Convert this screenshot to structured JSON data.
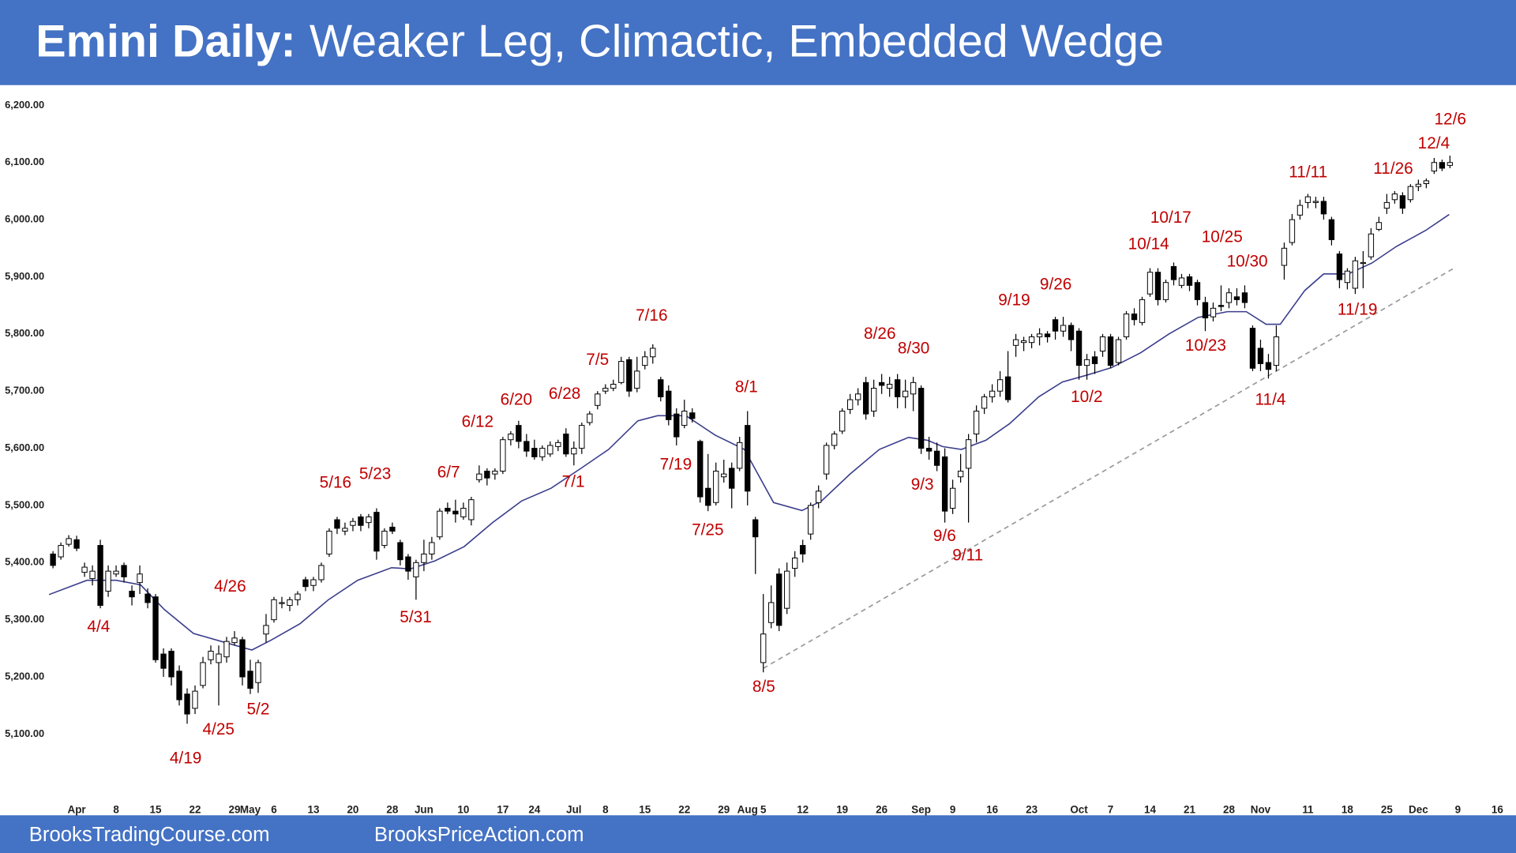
{
  "chart_data": {
    "type": "candlestick",
    "title_lead": "Emini Daily:",
    "title": "Weaker Leg, Climactic, Embedded Wedge",
    "ylim": [
      4990,
      6230
    ],
    "yticks": [
      {
        "value": 5100,
        "label": "5,100.00"
      },
      {
        "value": 5200,
        "label": "5,200.00"
      },
      {
        "value": 5300,
        "label": "5,300.00"
      },
      {
        "value": 5400,
        "label": "5,400.00"
      },
      {
        "value": 5500,
        "label": "5,500.00"
      },
      {
        "value": 5600,
        "label": "5,600.00"
      },
      {
        "value": 5700,
        "label": "5,700.00"
      },
      {
        "value": 5800,
        "label": "5,800.00"
      },
      {
        "value": 5900,
        "label": "5,900.00"
      },
      {
        "value": 6000,
        "label": "6,000.00"
      },
      {
        "value": 6100,
        "label": "6,100.00"
      },
      {
        "value": 6200,
        "label": "6,200.00"
      }
    ],
    "xlim": [
      -1.2,
      185
    ],
    "xticks": [
      {
        "value": 3,
        "label": "Apr"
      },
      {
        "value": 8,
        "label": "8"
      },
      {
        "value": 13,
        "label": "15"
      },
      {
        "value": 18,
        "label": "22"
      },
      {
        "value": 23,
        "label": "29"
      },
      {
        "value": 25,
        "label": "May"
      },
      {
        "value": 28,
        "label": "6"
      },
      {
        "value": 33,
        "label": "13"
      },
      {
        "value": 38,
        "label": "20"
      },
      {
        "value": 43,
        "label": "28"
      },
      {
        "value": 47,
        "label": "Jun"
      },
      {
        "value": 52,
        "label": "10"
      },
      {
        "value": 57,
        "label": "17"
      },
      {
        "value": 61,
        "label": "24"
      },
      {
        "value": 66,
        "label": "Jul"
      },
      {
        "value": 70,
        "label": "8"
      },
      {
        "value": 75,
        "label": "15"
      },
      {
        "value": 80,
        "label": "22"
      },
      {
        "value": 85,
        "label": "29"
      },
      {
        "value": 88,
        "label": "Aug"
      },
      {
        "value": 90,
        "label": "5"
      },
      {
        "value": 95,
        "label": "12"
      },
      {
        "value": 100,
        "label": "19"
      },
      {
        "value": 105,
        "label": "26"
      },
      {
        "value": 110,
        "label": "Sep"
      },
      {
        "value": 114,
        "label": "9"
      },
      {
        "value": 119,
        "label": "16"
      },
      {
        "value": 124,
        "label": "23"
      },
      {
        "value": 130,
        "label": "Oct"
      },
      {
        "value": 134,
        "label": "7"
      },
      {
        "value": 139,
        "label": "14"
      },
      {
        "value": 144,
        "label": "21"
      },
      {
        "value": 149,
        "label": "28"
      },
      {
        "value": 153,
        "label": "Nov"
      },
      {
        "value": 159,
        "label": "11"
      },
      {
        "value": 164,
        "label": "18"
      },
      {
        "value": 169,
        "label": "25"
      },
      {
        "value": 173,
        "label": "Dec"
      },
      {
        "value": 178,
        "label": "9"
      },
      {
        "value": 183,
        "label": "16"
      }
    ],
    "grid": false,
    "up_color": "#ffffff",
    "down_color": "#000000",
    "candles": {
      "open": [
        5415,
        5410,
        5432,
        5440,
        5383,
        5372,
        5430,
        5350,
        5380,
        5395,
        5350,
        5365,
        5345,
        5340,
        5240,
        5245,
        5210,
        5170,
        5145,
        5185,
        5230,
        5225,
        5235,
        5260,
        5265,
        5210,
        5190,
        5275,
        5300,
        5330,
        5325,
        5335,
        5370,
        5360,
        5370,
        5415,
        5475,
        5455,
        5465,
        5480,
        5470,
        5488,
        5430,
        5462,
        5435,
        5410,
        5375,
        5400,
        5415,
        5445,
        5495,
        5490,
        5480,
        5475,
        5545,
        5560,
        5555,
        5560,
        5615,
        5640,
        5612,
        5600,
        5585,
        5590,
        5603,
        5625,
        5590,
        5600,
        5645,
        5675,
        5700,
        5705,
        5715,
        5755,
        5705,
        5745,
        5760,
        5720,
        5700,
        5660,
        5640,
        5662,
        5612,
        5530,
        5505,
        5550,
        5565,
        5565,
        5640,
        5475,
        5225,
        5295,
        5380,
        5320,
        5390,
        5430,
        5450,
        5505,
        5555,
        5605,
        5630,
        5668,
        5685,
        5715,
        5665,
        5715,
        5705,
        5720,
        5690,
        5695,
        5705,
        5600,
        5595,
        5585,
        5495,
        5550,
        5565,
        5625,
        5670,
        5690,
        5700,
        5725,
        5780,
        5785,
        5785,
        5795,
        5800,
        5825,
        5805,
        5815,
        5805,
        5745,
        5760,
        5770,
        5795,
        5750,
        5795,
        5835,
        5820,
        5870,
        5908,
        5860,
        5918,
        5885,
        5900,
        5890,
        5855,
        5830,
        5850,
        5855,
        5865,
        5872,
        5810,
        5775,
        5750,
        5745,
        5920,
        5960,
        6008,
        6030,
        6030,
        6032,
        6000,
        5940,
        5890,
        5880,
        5925,
        5935,
        5983,
        6020,
        6035,
        6042,
        6035,
        6058,
        6063,
        6085,
        6100,
        6095
      ],
      "high": [
        5420,
        5435,
        5448,
        5447,
        5400,
        5395,
        5440,
        5395,
        5395,
        5400,
        5360,
        5395,
        5355,
        5345,
        5250,
        5250,
        5220,
        5180,
        5185,
        5235,
        5255,
        5255,
        5270,
        5280,
        5270,
        5230,
        5230,
        5310,
        5340,
        5340,
        5340,
        5350,
        5375,
        5375,
        5400,
        5460,
        5480,
        5470,
        5478,
        5485,
        5485,
        5495,
        5460,
        5470,
        5440,
        5415,
        5405,
        5440,
        5445,
        5495,
        5505,
        5510,
        5505,
        5515,
        5570,
        5565,
        5565,
        5620,
        5630,
        5648,
        5625,
        5615,
        5605,
        5612,
        5615,
        5635,
        5612,
        5645,
        5665,
        5700,
        5712,
        5720,
        5760,
        5760,
        5760,
        5770,
        5782,
        5725,
        5710,
        5670,
        5685,
        5670,
        5615,
        5590,
        5575,
        5580,
        5575,
        5620,
        5665,
        5480,
        5345,
        5360,
        5390,
        5400,
        5420,
        5440,
        5505,
        5535,
        5610,
        5630,
        5670,
        5695,
        5705,
        5725,
        5720,
        5730,
        5725,
        5730,
        5720,
        5725,
        5710,
        5620,
        5610,
        5600,
        5545,
        5590,
        5625,
        5675,
        5695,
        5712,
        5735,
        5770,
        5800,
        5795,
        5800,
        5810,
        5805,
        5830,
        5830,
        5820,
        5810,
        5765,
        5770,
        5800,
        5800,
        5795,
        5840,
        5845,
        5865,
        5915,
        5915,
        5895,
        5925,
        5905,
        5905,
        5895,
        5865,
        5855,
        5885,
        5880,
        5880,
        5885,
        5815,
        5790,
        5765,
        5815,
        5960,
        6010,
        6035,
        6045,
        6040,
        6040,
        6005,
        5945,
        5915,
        5935,
        5945,
        5985,
        6005,
        6045,
        6050,
        6048,
        6062,
        6070,
        6072,
        6108,
        6105,
        6112
      ],
      "low": [
        5390,
        5405,
        5428,
        5420,
        5375,
        5360,
        5320,
        5340,
        5375,
        5365,
        5325,
        5345,
        5320,
        5225,
        5200,
        5185,
        5150,
        5118,
        5135,
        5180,
        5222,
        5150,
        5225,
        5255,
        5185,
        5170,
        5172,
        5260,
        5295,
        5320,
        5315,
        5325,
        5350,
        5350,
        5365,
        5410,
        5450,
        5448,
        5455,
        5455,
        5460,
        5405,
        5425,
        5450,
        5395,
        5370,
        5335,
        5385,
        5405,
        5440,
        5485,
        5470,
        5475,
        5465,
        5540,
        5535,
        5545,
        5555,
        5605,
        5600,
        5585,
        5580,
        5578,
        5585,
        5595,
        5585,
        5570,
        5590,
        5640,
        5668,
        5695,
        5700,
        5712,
        5690,
        5698,
        5738,
        5748,
        5682,
        5640,
        5605,
        5635,
        5645,
        5505,
        5490,
        5500,
        5540,
        5495,
        5560,
        5500,
        5380,
        5208,
        5285,
        5280,
        5310,
        5375,
        5400,
        5440,
        5495,
        5545,
        5598,
        5625,
        5660,
        5675,
        5650,
        5655,
        5695,
        5690,
        5670,
        5670,
        5665,
        5590,
        5580,
        5560,
        5470,
        5485,
        5540,
        5470,
        5610,
        5660,
        5680,
        5690,
        5680,
        5760,
        5770,
        5775,
        5780,
        5785,
        5790,
        5795,
        5770,
        5720,
        5720,
        5730,
        5760,
        5740,
        5745,
        5790,
        5815,
        5815,
        5865,
        5850,
        5855,
        5885,
        5880,
        5875,
        5850,
        5805,
        5822,
        5840,
        5845,
        5850,
        5845,
        5735,
        5735,
        5722,
        5735,
        5895,
        5955,
        6000,
        6020,
        6020,
        6000,
        5955,
        5880,
        5878,
        5870,
        5880,
        5930,
        5980,
        6010,
        6028,
        6010,
        6030,
        6050,
        6055,
        6080,
        6085,
        6090
      ],
      "close": [
        5395,
        5430,
        5442,
        5425,
        5392,
        5385,
        5325,
        5385,
        5385,
        5375,
        5340,
        5380,
        5330,
        5230,
        5215,
        5200,
        5160,
        5135,
        5175,
        5225,
        5245,
        5240,
        5262,
        5268,
        5200,
        5180,
        5225,
        5290,
        5335,
        5330,
        5335,
        5345,
        5358,
        5370,
        5395,
        5455,
        5460,
        5460,
        5472,
        5465,
        5480,
        5420,
        5455,
        5455,
        5405,
        5385,
        5400,
        5415,
        5435,
        5490,
        5490,
        5485,
        5495,
        5510,
        5555,
        5548,
        5560,
        5615,
        5625,
        5612,
        5595,
        5585,
        5600,
        5605,
        5610,
        5590,
        5600,
        5640,
        5660,
        5695,
        5705,
        5712,
        5752,
        5700,
        5735,
        5760,
        5775,
        5690,
        5650,
        5620,
        5665,
        5652,
        5515,
        5500,
        5560,
        5555,
        5530,
        5610,
        5525,
        5445,
        5275,
        5330,
        5290,
        5385,
        5408,
        5415,
        5500,
        5525,
        5605,
        5625,
        5665,
        5685,
        5695,
        5660,
        5705,
        5710,
        5712,
        5690,
        5700,
        5715,
        5600,
        5595,
        5570,
        5490,
        5530,
        5560,
        5615,
        5665,
        5690,
        5700,
        5720,
        5685,
        5790,
        5788,
        5795,
        5800,
        5795,
        5805,
        5815,
        5790,
        5745,
        5755,
        5748,
        5795,
        5745,
        5790,
        5835,
        5825,
        5860,
        5908,
        5860,
        5890,
        5895,
        5898,
        5885,
        5860,
        5828,
        5845,
        5848,
        5872,
        5860,
        5855,
        5740,
        5748,
        5738,
        5795,
        5950,
        6000,
        6025,
        6040,
        6032,
        6010,
        5965,
        5895,
        5910,
        5928,
        5925,
        5975,
        5995,
        6030,
        6045,
        6020,
        6058,
        6062,
        6068,
        6100,
        6090,
        6100
      ]
    },
    "ma": {
      "color": "#3b3d8c",
      "x": [
        -0.5,
        4.3,
        8,
        11.1,
        14.1,
        17.8,
        22.1,
        25.2,
        27.6,
        31.3,
        34.9,
        38.6,
        42.9,
        45.3,
        48.4,
        52.1,
        55.7,
        59.4,
        63.1,
        66.8,
        70.4,
        74.1,
        76.6,
        80.2,
        83.9,
        87.6,
        91.3,
        94.9,
        97.4,
        101,
        104.7,
        108.4,
        110.8,
        112.7,
        115.1,
        118.2,
        121.2,
        124.9,
        127.9,
        131,
        134.1,
        137.8,
        141.4,
        145.1,
        148.8,
        151.2,
        153.7,
        155.5,
        158.6,
        161,
        164.1,
        167.1,
        170.2,
        173.9,
        176.9
      ],
      "values": [
        5344,
        5369,
        5369,
        5361,
        5318,
        5276,
        5259,
        5247,
        5264,
        5293,
        5335,
        5369,
        5391,
        5389,
        5403,
        5428,
        5470,
        5508,
        5530,
        5564,
        5598,
        5648,
        5657,
        5657,
        5623,
        5598,
        5505,
        5491,
        5508,
        5555,
        5598,
        5619,
        5614,
        5603,
        5598,
        5614,
        5643,
        5690,
        5716,
        5728,
        5741,
        5767,
        5800,
        5829,
        5839,
        5839,
        5817,
        5817,
        5876,
        5905,
        5905,
        5924,
        5953,
        5981,
        6009
      ]
    },
    "trendline": {
      "color": "#9a9a9a",
      "x": [
        90,
        177.5
      ],
      "values": [
        5215,
        5915
      ]
    },
    "annotations": [
      "4/4",
      "4/19",
      "4/25",
      "4/26",
      "5/2",
      "5/16",
      "5/23",
      "5/31",
      "6/7",
      "6/12",
      "6/20",
      "6/28",
      "7/1",
      "7/5",
      "7/16",
      "7/19",
      "7/25",
      "8/1",
      "8/5",
      "8/26",
      "8/30",
      "9/3",
      "9/6",
      "9/11",
      "9/19",
      "9/26",
      "10/2",
      "10/14",
      "10/17",
      "10/23",
      "10/25",
      "10/30",
      "11/4",
      "11/11",
      "11/19",
      "11/26",
      "12/4",
      "12/6"
    ],
    "annotation_color": "#c00000"
  },
  "footer": [
    "BrooksTradingCourse.com",
    "BrooksPriceAction.com"
  ]
}
